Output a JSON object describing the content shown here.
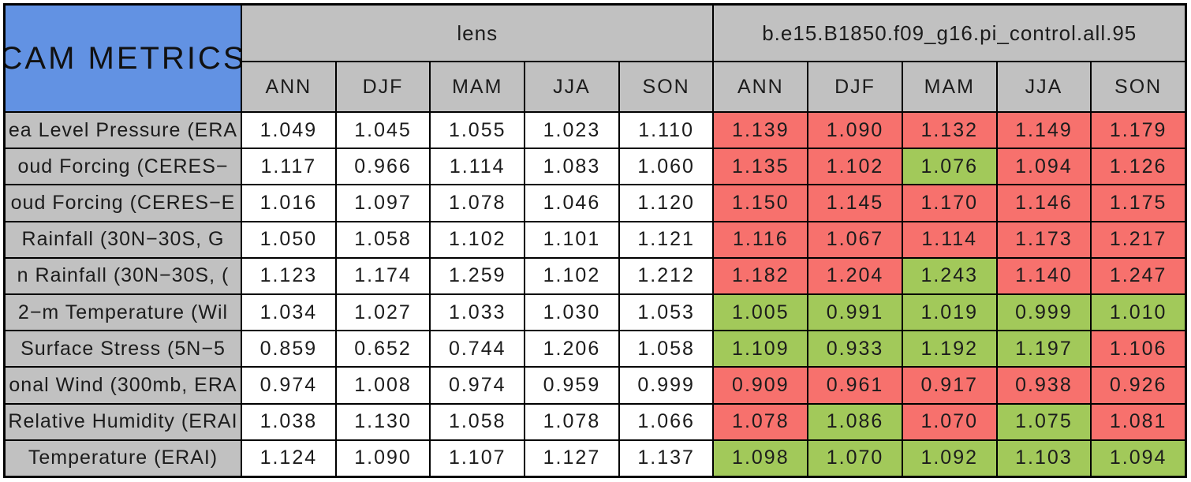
{
  "colors": {
    "red": "#f7716d",
    "green": "#a2c95a",
    "blue": "#6292e3",
    "gray": "#c1c1c1",
    "border": "#000000",
    "cell_white": "#ffffff"
  },
  "chart_data": {
    "type": "table",
    "title": "CAM METRICS",
    "column_groups": [
      {
        "label": "lens",
        "columns": [
          "ANN",
          "DJF",
          "MAM",
          "JJA",
          "SON"
        ]
      },
      {
        "label": "b.e15.B1850.f09_g16.pi_control.all.95",
        "columns": [
          "ANN",
          "DJF",
          "MAM",
          "JJA",
          "SON"
        ]
      }
    ],
    "palette": {
      "red": "#f7716d",
      "green": "#a2c95a",
      "white": "#ffffff"
    },
    "rows": [
      {
        "label": "ea Level Pressure (ERA",
        "lens": [
          "1.049",
          "1.045",
          "1.055",
          "1.023",
          "1.110"
        ],
        "control": [
          "1.139",
          "1.090",
          "1.132",
          "1.149",
          "1.179"
        ],
        "control_status": [
          "red",
          "red",
          "red",
          "red",
          "red"
        ]
      },
      {
        "label": "oud Forcing (CERES−",
        "lens": [
          "1.117",
          "0.966",
          "1.114",
          "1.083",
          "1.060"
        ],
        "control": [
          "1.135",
          "1.102",
          "1.076",
          "1.094",
          "1.126"
        ],
        "control_status": [
          "red",
          "red",
          "green",
          "red",
          "red"
        ]
      },
      {
        "label": "oud Forcing (CERES−E",
        "lens": [
          "1.016",
          "1.097",
          "1.078",
          "1.046",
          "1.120"
        ],
        "control": [
          "1.150",
          "1.145",
          "1.170",
          "1.146",
          "1.175"
        ],
        "control_status": [
          "red",
          "red",
          "red",
          "red",
          "red"
        ]
      },
      {
        "label": "Rainfall (30N−30S, G",
        "lens": [
          "1.050",
          "1.058",
          "1.102",
          "1.101",
          "1.121"
        ],
        "control": [
          "1.116",
          "1.067",
          "1.114",
          "1.173",
          "1.217"
        ],
        "control_status": [
          "red",
          "red",
          "red",
          "red",
          "red"
        ]
      },
      {
        "label": "n Rainfall (30N−30S, (",
        "lens": [
          "1.123",
          "1.174",
          "1.259",
          "1.102",
          "1.212"
        ],
        "control": [
          "1.182",
          "1.204",
          "1.243",
          "1.140",
          "1.247"
        ],
        "control_status": [
          "red",
          "red",
          "green",
          "red",
          "red"
        ]
      },
      {
        "label": "2−m Temperature (Wil",
        "lens": [
          "1.034",
          "1.027",
          "1.033",
          "1.030",
          "1.053"
        ],
        "control": [
          "1.005",
          "0.991",
          "1.019",
          "0.999",
          "1.010"
        ],
        "control_status": [
          "green",
          "green",
          "green",
          "green",
          "green"
        ]
      },
      {
        "label": "Surface Stress (5N−5",
        "lens": [
          "0.859",
          "0.652",
          "0.744",
          "1.206",
          "1.058"
        ],
        "control": [
          "1.109",
          "0.933",
          "1.192",
          "1.197",
          "1.106"
        ],
        "control_status": [
          "green",
          "green",
          "green",
          "green",
          "red"
        ]
      },
      {
        "label": "onal Wind (300mb, ERA",
        "lens": [
          "0.974",
          "1.008",
          "0.974",
          "0.959",
          "0.999"
        ],
        "control": [
          "0.909",
          "0.961",
          "0.917",
          "0.938",
          "0.926"
        ],
        "control_status": [
          "red",
          "red",
          "red",
          "red",
          "red"
        ]
      },
      {
        "label": "Relative Humidity (ERAI",
        "lens": [
          "1.038",
          "1.130",
          "1.058",
          "1.078",
          "1.066"
        ],
        "control": [
          "1.078",
          "1.086",
          "1.070",
          "1.075",
          "1.081"
        ],
        "control_status": [
          "red",
          "green",
          "red",
          "green",
          "red"
        ]
      },
      {
        "label": "Temperature (ERAI)",
        "lens": [
          "1.124",
          "1.090",
          "1.107",
          "1.127",
          "1.137"
        ],
        "control": [
          "1.098",
          "1.070",
          "1.092",
          "1.103",
          "1.094"
        ],
        "control_status": [
          "green",
          "green",
          "green",
          "green",
          "green"
        ]
      }
    ]
  }
}
